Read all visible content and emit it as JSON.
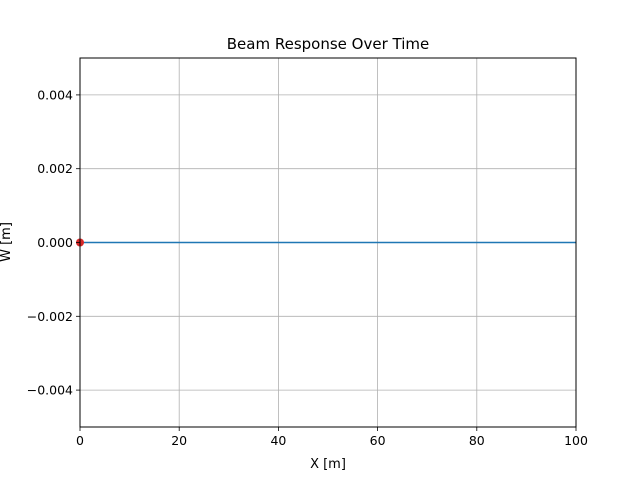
{
  "chart_data": {
    "type": "line",
    "title": "Beam Response Over Time",
    "xlabel": "X [m]",
    "ylabel": "W [m]",
    "xlim": [
      0,
      100
    ],
    "ylim": [
      -0.005,
      0.005
    ],
    "grid": true,
    "x_ticks": [
      0,
      20,
      40,
      60,
      80,
      100
    ],
    "x_tick_labels": [
      "0",
      "20",
      "40",
      "60",
      "80",
      "100"
    ],
    "y_ticks": [
      -0.004,
      -0.002,
      0.0,
      0.002,
      0.004
    ],
    "y_tick_labels": [
      "−0.004",
      "−0.002",
      "0.000",
      "0.002",
      "0.004"
    ],
    "series": [
      {
        "x": [
          0,
          100
        ],
        "y": [
          0,
          0
        ],
        "color": "#1f77b4"
      }
    ],
    "marker": {
      "x": 0,
      "y": 0,
      "color": "#d62728"
    },
    "colors": {
      "beam_line": "#1f77b4",
      "load_marker": "#d62728",
      "grid": "#b0b0b0"
    }
  }
}
